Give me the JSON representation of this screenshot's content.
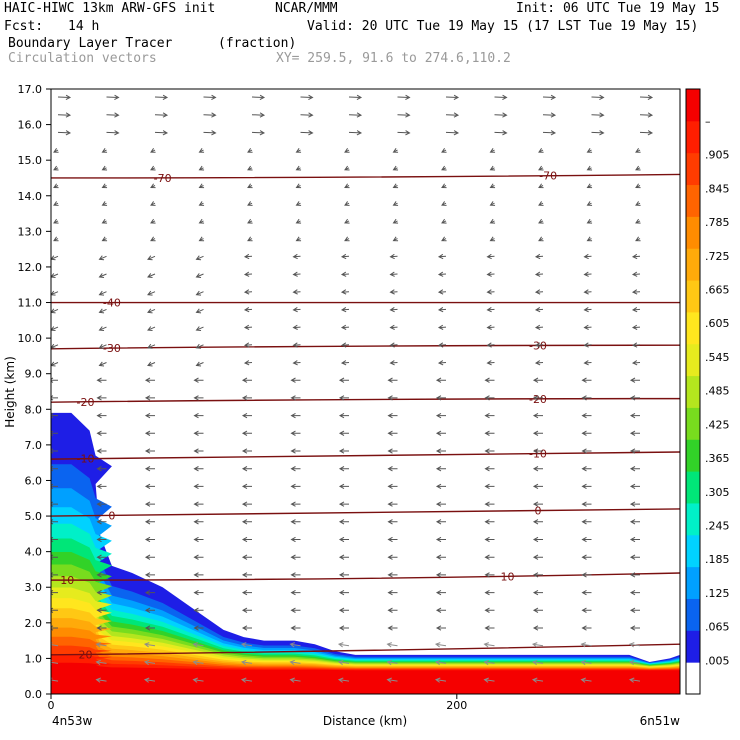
{
  "header": {
    "model": "HAIC-HIWC 13km ARW-GFS init",
    "center": "NCAR/MMM",
    "init": "Init: 06 UTC Tue 19 May 15",
    "fcst_label": "Fcst:",
    "fcst_value": "14 h",
    "valid": "Valid: 20 UTC Tue 19 May 15 (17 LST Tue 19 May 15)",
    "field_name": "Boundary Layer Tracer",
    "field_units": "(fraction)",
    "vector_label": "Circulation vectors",
    "xy_label": "XY= 259.5, 91.6 to 274.6,110.2"
  },
  "chart_data": {
    "type": "heatmap",
    "ylabel": "Height (km)",
    "xlabel": "Distance (km)",
    "x_start_label": "4n53w",
    "x_end_label": "6n51w",
    "xlim": [
      0,
      310
    ],
    "ylim": [
      0,
      17
    ],
    "x_ticks": [
      0,
      200
    ],
    "y_ticks": [
      "0.0",
      "1.0",
      "2.0",
      "3.0",
      "4.0",
      "5.0",
      "6.0",
      "7.0",
      "8.0",
      "9.0",
      "10.0",
      "11.0",
      "12.0",
      "13.0",
      "14.0",
      "15.0",
      "16.0",
      "17.0"
    ],
    "colorbar_labels": [
      ".005",
      ".065",
      ".125",
      ".185",
      ".245",
      ".305",
      ".365",
      ".425",
      ".485",
      ".545",
      ".605",
      ".665",
      ".725",
      ".785",
      ".845",
      ".905",
      "–"
    ],
    "colorbar_colors": [
      "#1e1ee6",
      "#0a64f0",
      "#00a0ff",
      "#00d2ff",
      "#00f0c8",
      "#00e678",
      "#32d228",
      "#78dc1e",
      "#b4e61e",
      "#e6eb1e",
      "#ffe61e",
      "#ffc814",
      "#ffaa0a",
      "#ff8c00",
      "#ff6400",
      "#ff3c00",
      "#ff1e00",
      "#f50000"
    ],
    "tracer_top_km": [
      {
        "x": 0,
        "top": 7.9
      },
      {
        "x": 10,
        "top": 7.9
      },
      {
        "x": 19,
        "top": 7.4
      },
      {
        "x": 22,
        "top": 6.7
      },
      {
        "x": 30,
        "top": 6.4
      },
      {
        "x": 22,
        "top": 5.9
      },
      {
        "x": 24,
        "top": 4.5
      },
      {
        "x": 30,
        "top": 3.6
      },
      {
        "x": 40,
        "top": 3.4
      },
      {
        "x": 55,
        "top": 3.0
      },
      {
        "x": 65,
        "top": 2.6
      },
      {
        "x": 75,
        "top": 2.2
      },
      {
        "x": 85,
        "top": 1.8
      },
      {
        "x": 95,
        "top": 1.6
      },
      {
        "x": 105,
        "top": 1.5
      },
      {
        "x": 120,
        "top": 1.5
      },
      {
        "x": 130,
        "top": 1.4
      },
      {
        "x": 140,
        "top": 1.2
      },
      {
        "x": 150,
        "top": 1.1
      },
      {
        "x": 200,
        "top": 1.1
      },
      {
        "x": 250,
        "top": 1.1
      },
      {
        "x": 285,
        "top": 1.1
      },
      {
        "x": 295,
        "top": 0.9
      },
      {
        "x": 305,
        "top": 1.0
      },
      {
        "x": 310,
        "top": 1.1
      }
    ],
    "temperature_contours": [
      {
        "label": "-70",
        "height": [
          14.5,
          14.5,
          14.6
        ],
        "label_x": [
          55,
          245
        ]
      },
      {
        "label": "-40",
        "height": [
          11.0,
          11.0,
          11.0
        ],
        "label_x": [
          30
        ]
      },
      {
        "label": "-30",
        "height": [
          9.7,
          9.8,
          9.8
        ],
        "label_x": [
          30,
          240
        ]
      },
      {
        "label": "-20",
        "height": [
          8.2,
          8.3,
          8.3
        ],
        "label_x": [
          17,
          240
        ]
      },
      {
        "label": "-10",
        "height": [
          6.6,
          6.7,
          6.8
        ],
        "label_x": [
          17,
          240
        ]
      },
      {
        "label": "0",
        "height": [
          5.0,
          5.1,
          5.2
        ],
        "label_x": [
          30,
          240
        ]
      },
      {
        "label": "10",
        "height": [
          3.2,
          3.2,
          3.4
        ],
        "label_x": [
          8,
          225
        ]
      },
      {
        "label": "20",
        "height": [
          1.1,
          1.2,
          1.4
        ],
        "label_x": [
          17
        ]
      }
    ]
  }
}
